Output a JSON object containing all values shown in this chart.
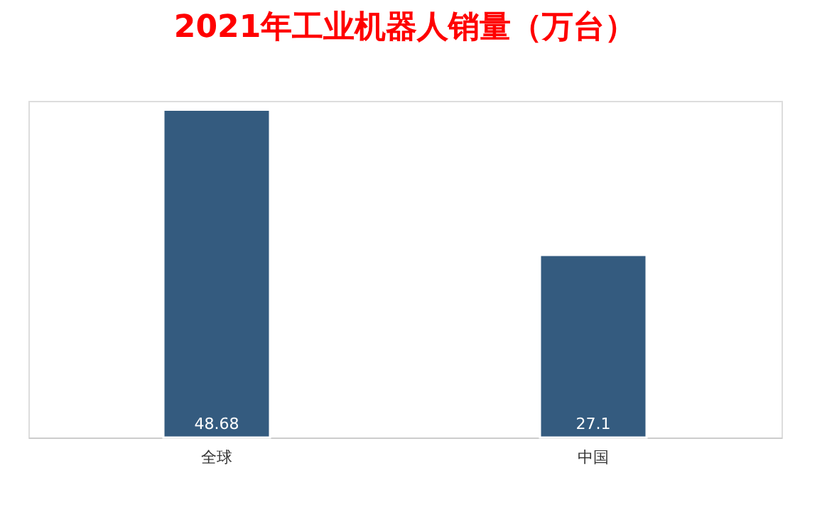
{
  "chart_data": {
    "type": "bar",
    "title": "2021年工业机器人销量（万台）",
    "categories": [
      "全球",
      "中国"
    ],
    "values": [
      48.68,
      27.1
    ],
    "color": "#345b7f",
    "data_labels": true,
    "tick_labels": "x",
    "grid": false
  }
}
